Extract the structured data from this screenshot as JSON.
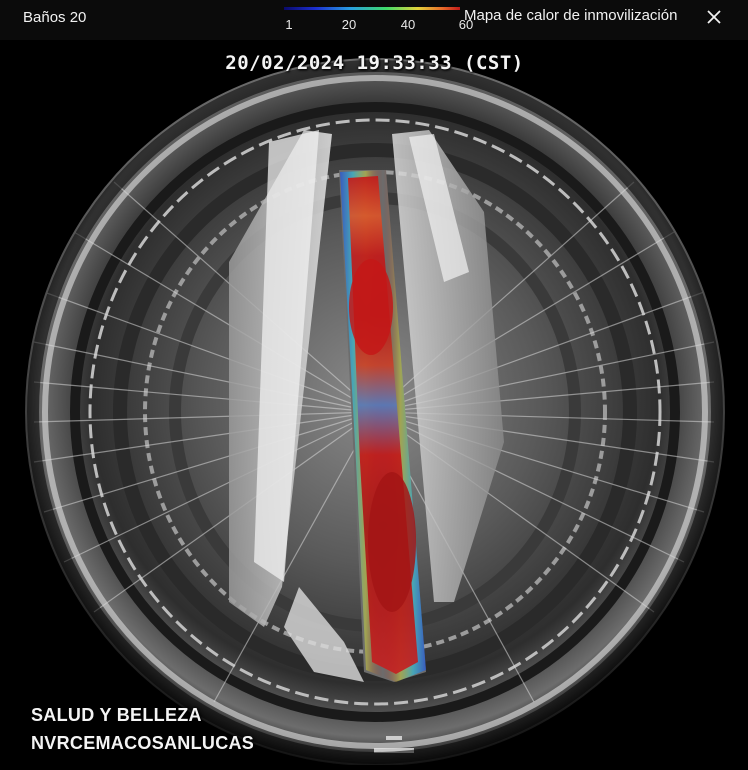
{
  "header": {
    "camera_name": "Baños 20",
    "panel_title": "Mapa de calor de inmovilización",
    "legend": {
      "ticks": [
        "1",
        "20",
        "40",
        "60"
      ],
      "colors": [
        "#0a0a6a",
        "#1c2fd0",
        "#29a0e0",
        "#3fdc6a",
        "#e2d23a",
        "#e86a2a",
        "#c21a1a"
      ]
    },
    "close_icon": "close-icon"
  },
  "video": {
    "timestamp": "20/02/2024 19:33:33 (CST)",
    "overlay_lines": [
      "SALUD Y BELLEZA",
      "NVRCEMACOSANLUCAS"
    ]
  },
  "colors": {
    "background": "#000000",
    "titlebar": "#0b0b0b",
    "text": "#f2f2f2"
  }
}
